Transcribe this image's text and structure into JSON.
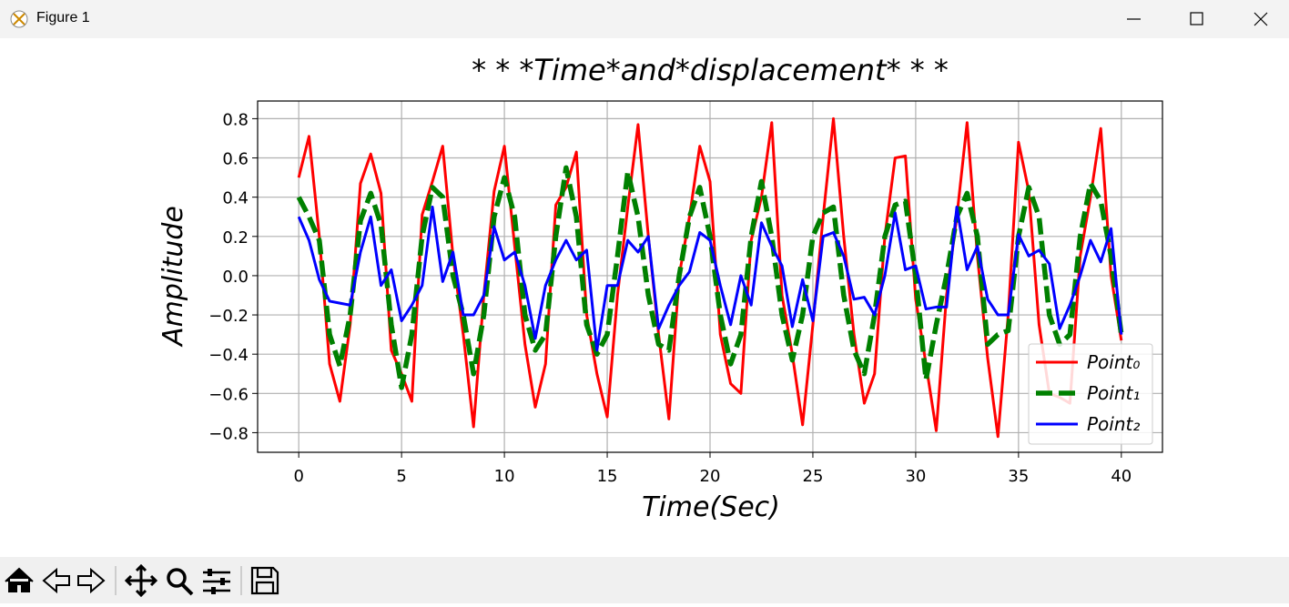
{
  "window": {
    "title": "Figure 1"
  },
  "chart_data": {
    "type": "line",
    "title": "* * *Time*and*displacement* * *",
    "x_label": "Time(Sec)",
    "y_label": "Amplitude",
    "x": [
      0,
      0.5,
      1,
      1.5,
      2,
      2.5,
      3,
      3.5,
      4,
      4.5,
      5,
      5.5,
      6,
      6.5,
      7,
      7.5,
      8,
      8.5,
      9,
      9.5,
      10,
      10.5,
      11,
      11.5,
      12,
      12.5,
      13,
      13.5,
      14,
      14.5,
      15,
      15.5,
      16,
      16.5,
      17,
      17.5,
      18,
      18.5,
      19,
      19.5,
      20,
      20.5,
      21,
      21.5,
      22,
      22.5,
      23,
      23.5,
      24,
      24.5,
      25,
      25.5,
      26,
      26.5,
      27,
      27.5,
      28,
      28.5,
      29,
      29.5,
      30,
      30.5,
      31,
      31.5,
      32,
      32.5,
      33,
      33.5,
      34,
      34.5,
      35,
      35.5,
      36,
      36.5,
      37,
      37.5,
      38,
      38.5,
      39,
      39.5,
      40
    ],
    "series": [
      {
        "name": "Point₀",
        "color": "#ff0000",
        "dash": "solid",
        "values": [
          0.5,
          0.71,
          0.2,
          -0.45,
          -0.64,
          -0.25,
          0.47,
          0.62,
          0.42,
          -0.38,
          -0.5,
          -0.64,
          0.31,
          0.48,
          0.66,
          0.1,
          -0.3,
          -0.77,
          -0.1,
          0.43,
          0.66,
          0.15,
          -0.35,
          -0.67,
          -0.45,
          0.36,
          0.45,
          0.63,
          -0.2,
          -0.5,
          -0.72,
          -0.1,
          0.35,
          0.77,
          0.2,
          -0.3,
          -0.73,
          0.0,
          0.3,
          0.66,
          0.48,
          -0.3,
          -0.55,
          -0.6,
          0.18,
          0.4,
          0.78,
          -0.1,
          -0.4,
          -0.76,
          -0.25,
          0.3,
          0.8,
          0.2,
          -0.3,
          -0.65,
          -0.5,
          0.2,
          0.6,
          0.61,
          -0.12,
          -0.45,
          -0.79,
          -0.1,
          0.3,
          0.78,
          0.1,
          -0.42,
          -0.82,
          -0.2,
          0.68,
          0.43,
          -0.25,
          -0.6,
          -0.62,
          -0.65,
          0.1,
          0.4,
          0.75,
          0.0,
          -0.33
        ]
      },
      {
        "name": "Point₁",
        "color": "#008000",
        "dash": "dashed",
        "values": [
          0.4,
          0.3,
          0.18,
          -0.3,
          -0.46,
          -0.2,
          0.28,
          0.42,
          0.26,
          -0.25,
          -0.57,
          -0.3,
          0.2,
          0.45,
          0.4,
          0.0,
          -0.2,
          -0.5,
          -0.2,
          0.3,
          0.5,
          0.3,
          -0.2,
          -0.38,
          -0.3,
          0.2,
          0.55,
          0.3,
          -0.25,
          -0.4,
          -0.3,
          0.1,
          0.53,
          0.3,
          -0.1,
          -0.35,
          -0.38,
          0.0,
          0.3,
          0.45,
          0.2,
          -0.2,
          -0.45,
          -0.3,
          0.2,
          0.48,
          0.2,
          -0.2,
          -0.43,
          -0.2,
          0.2,
          0.32,
          0.35,
          -0.1,
          -0.38,
          -0.5,
          -0.2,
          0.2,
          0.36,
          0.38,
          0.0,
          -0.53,
          -0.25,
          0.0,
          0.3,
          0.42,
          0.2,
          -0.35,
          -0.3,
          -0.28,
          0.2,
          0.45,
          0.3,
          -0.2,
          -0.35,
          -0.3,
          0.2,
          0.47,
          0.38,
          0.1,
          -0.3
        ]
      },
      {
        "name": "Point₂",
        "color": "#0000ff",
        "dash": "solid",
        "values": [
          0.3,
          0.18,
          -0.02,
          -0.13,
          -0.14,
          -0.15,
          0.12,
          0.3,
          -0.05,
          0.03,
          -0.23,
          -0.15,
          -0.05,
          0.35,
          -0.03,
          0.12,
          -0.2,
          -0.2,
          -0.1,
          0.25,
          0.08,
          0.12,
          -0.05,
          -0.32,
          -0.05,
          0.08,
          0.18,
          0.08,
          0.13,
          -0.38,
          -0.05,
          -0.05,
          0.18,
          0.12,
          0.2,
          -0.27,
          -0.15,
          -0.05,
          0.02,
          0.22,
          0.18,
          -0.05,
          -0.25,
          0.0,
          -0.15,
          0.27,
          0.15,
          0.05,
          -0.26,
          -0.02,
          -0.23,
          0.2,
          0.22,
          0.1,
          -0.12,
          -0.11,
          -0.2,
          0.0,
          0.32,
          0.03,
          0.05,
          -0.17,
          -0.16,
          -0.16,
          0.35,
          0.03,
          0.15,
          -0.12,
          -0.2,
          -0.2,
          0.21,
          0.1,
          0.13,
          0.06,
          -0.27,
          -0.15,
          0.0,
          0.18,
          0.07,
          0.24,
          -0.3
        ]
      }
    ],
    "xlim": [
      -2,
      42
    ],
    "ylim": [
      -0.9,
      0.89
    ],
    "xticks": [
      0,
      5,
      10,
      15,
      20,
      25,
      30,
      35,
      40
    ],
    "yticks": [
      {
        "value": -0.8,
        "label": "−0.8"
      },
      {
        "value": -0.6,
        "label": "−0.6"
      },
      {
        "value": -0.4,
        "label": "−0.4"
      },
      {
        "value": -0.2,
        "label": "−0.2"
      },
      {
        "value": 0,
        "label": "0.0"
      },
      0.2,
      0.4,
      0.6,
      0.8
    ],
    "grid": true,
    "legend": "lower right"
  }
}
